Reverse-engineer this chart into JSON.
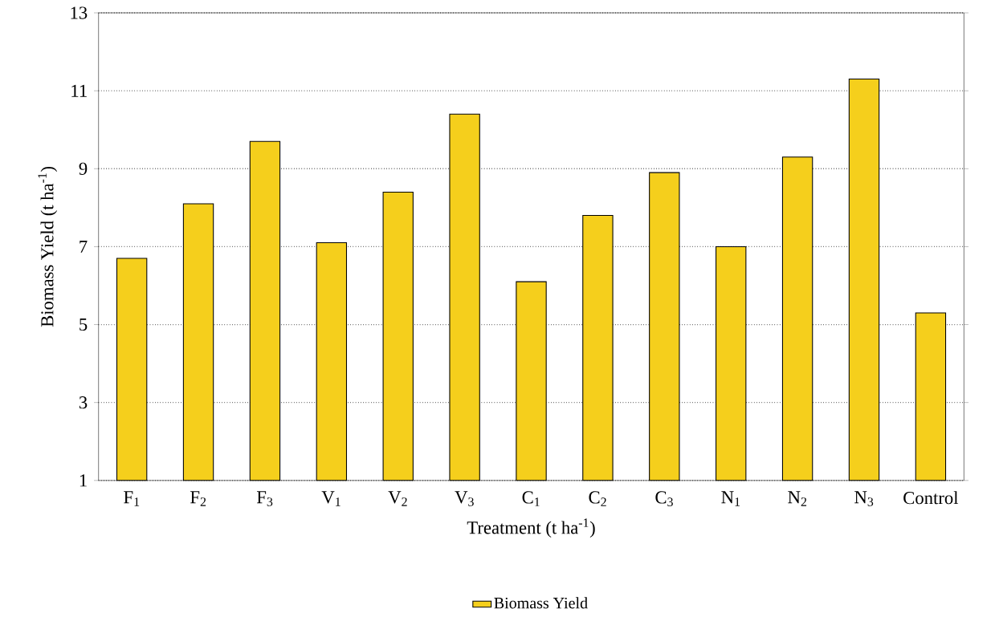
{
  "chart_data": {
    "type": "bar",
    "xlabel": "Treatment (t ha$^{-1}$)",
    "ylabel": "Biomass Yield (t ha$^{-1}$)",
    "categories": [
      "F$_{1}$",
      "F$_{2}$",
      "F$_{3}$",
      "V$_{1}$",
      "V$_{2}$",
      "V$_{3}$",
      "C$_{1}$",
      "C$_{2}$",
      "C$_{3}$",
      "N$_{1}$",
      "N$_{2}$",
      "N$_{3}$",
      "Control"
    ],
    "series": [
      {
        "name": "Biomass Yield",
        "color": "#f5cf1c",
        "values": [
          6.7,
          8.1,
          9.7,
          7.1,
          8.4,
          10.4,
          6.1,
          7.8,
          8.9,
          7.0,
          9.3,
          11.3,
          5.3
        ]
      }
    ],
    "ylim": [
      1,
      13
    ],
    "yticks": [
      1,
      3,
      5,
      7,
      9,
      11,
      13
    ],
    "grid": "y",
    "legend": "bottom"
  }
}
